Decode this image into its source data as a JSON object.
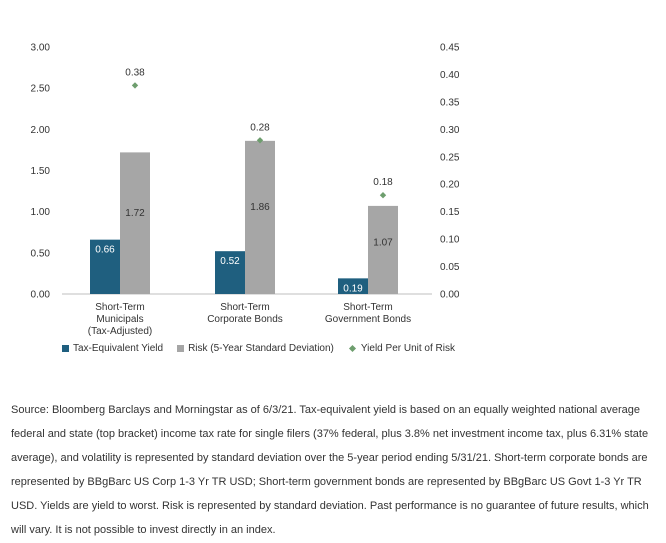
{
  "chart_data": {
    "type": "bar",
    "categories": [
      [
        "Short-Term",
        "Municipals",
        "(Tax-Adjusted)"
      ],
      [
        "Short-Term",
        "Corporate Bonds"
      ],
      [
        "Short-Term",
        "Government Bonds"
      ]
    ],
    "series": [
      {
        "name": "Tax-Equivalent Yield",
        "axis": "left",
        "kind": "bar",
        "color": "#1f5f7f",
        "label_color": "#ffffff",
        "values": [
          0.66,
          0.52,
          0.19
        ],
        "labels": [
          "0.66",
          "0.52",
          "0.19"
        ]
      },
      {
        "name": "Risk (5-Year Standard Deviation)",
        "axis": "left",
        "kind": "bar",
        "color": "#a6a6a6",
        "label_color": "#333333",
        "values": [
          1.72,
          1.86,
          1.07
        ],
        "labels": [
          "1.72",
          "1.86",
          "1.07"
        ]
      },
      {
        "name": "Yield Per Unit of Risk",
        "axis": "right",
        "kind": "marker",
        "color": "#6e9e6e",
        "values": [
          0.38,
          0.28,
          0.18
        ],
        "labels": [
          "0.38",
          "0.28",
          "0.18"
        ]
      }
    ],
    "y_left": {
      "min": 0,
      "max": 3,
      "ticks": [
        "0.00",
        "0.50",
        "1.00",
        "1.50",
        "2.00",
        "2.50",
        "3.00"
      ]
    },
    "y_right": {
      "min": 0,
      "max": 0.45,
      "ticks": [
        "0.00",
        "0.05",
        "0.10",
        "0.15",
        "0.20",
        "0.25",
        "0.30",
        "0.35",
        "0.40",
        "0.45"
      ]
    },
    "legend_position": "bottom-left",
    "grid": false
  },
  "legend": {
    "yield": "Tax-Equivalent Yield",
    "risk": "Risk (5-Year Standard Deviation)",
    "ratio": "Yield Per Unit of Risk"
  },
  "source_note": "Source: Bloomberg Barclays and Morningstar as of 6/3/21. Tax-equivalent yield is based on an equally weighted national average federal and state (top bracket) income tax rate for single filers (37% federal, plus 3.8% net investment income tax, plus 6.31% state average), and volatility is represented by standard deviation over the 5-year period ending 5/31/21. Short-term corporate bonds are represented by BBgBarc US Corp 1-3 Yr TR USD; Short-term government bonds are represented by BBgBarc US Govt 1-3 Yr TR USD. Yields are yield to worst. Risk is represented by standard deviation. Past performance is no guarantee of future results, which will vary. It is not possible to invest directly in an index."
}
